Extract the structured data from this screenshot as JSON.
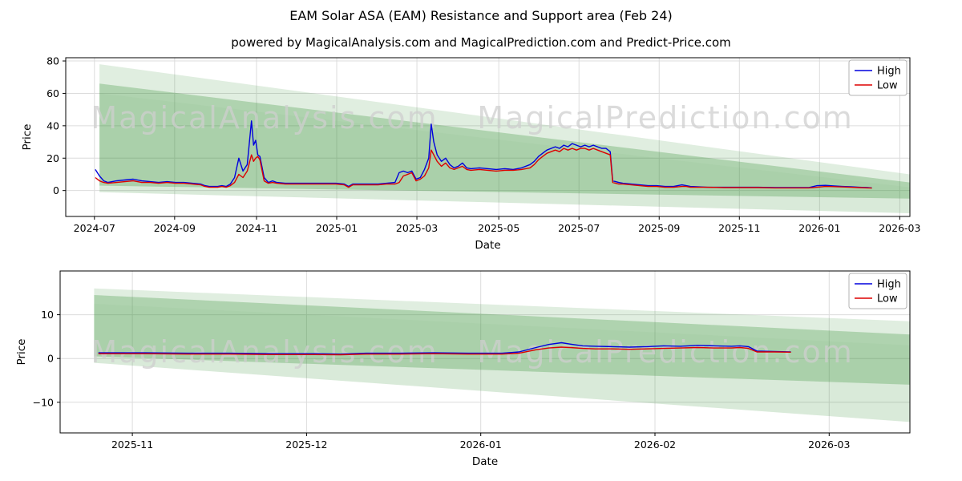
{
  "header": {
    "title": "EAM Solar ASA (EAM) Resistance and Support area (Feb 24)",
    "subtitle": "powered by MagicalAnalysis.com and MagicalPrediction.com and Predict-Price.com"
  },
  "watermarks": [
    "MagicalAnalysis.com",
    "MagicalPrediction.com"
  ],
  "colors": {
    "high": "#0000dd",
    "low": "#dd0000",
    "band": "#2e8b2e",
    "grid": "#dcdcdc",
    "watermark": "#cfcfcf",
    "axis": "#000000"
  },
  "legend": {
    "high_label": "High",
    "low_label": "Low"
  },
  "chart_data": [
    {
      "type": "line",
      "title": "Resistance and Support area - full history",
      "xlabel": "Date",
      "ylabel": "Price",
      "ylim": [
        -16,
        82
      ],
      "x_ticks": [
        {
          "f": 0.034,
          "label": "2024-07"
        },
        {
          "f": 0.129,
          "label": "2024-09"
        },
        {
          "f": 0.226,
          "label": "2024-11"
        },
        {
          "f": 0.321,
          "label": "2025-01"
        },
        {
          "f": 0.416,
          "label": "2025-03"
        },
        {
          "f": 0.513,
          "label": "2025-05"
        },
        {
          "f": 0.608,
          "label": "2025-07"
        },
        {
          "f": 0.703,
          "label": "2025-09"
        },
        {
          "f": 0.798,
          "label": "2025-11"
        },
        {
          "f": 0.893,
          "label": "2026-01"
        },
        {
          "f": 0.988,
          "label": "2026-03"
        }
      ],
      "y_ticks": [
        {
          "v": 0,
          "label": "0"
        },
        {
          "v": 20,
          "label": "20"
        },
        {
          "v": 40,
          "label": "40"
        },
        {
          "v": 60,
          "label": "60"
        },
        {
          "v": 80,
          "label": "80"
        }
      ],
      "series": [
        {
          "name": "High",
          "color_key": "high"
        },
        {
          "name": "Low",
          "color_key": "low"
        }
      ],
      "points": [
        [
          0.035,
          13,
          8
        ],
        [
          0.04,
          9,
          6
        ],
        [
          0.045,
          6,
          5
        ],
        [
          0.05,
          5,
          4.5
        ],
        [
          0.06,
          6,
          5
        ],
        [
          0.07,
          6.5,
          5.5
        ],
        [
          0.08,
          7,
          6
        ],
        [
          0.09,
          6,
          5
        ],
        [
          0.1,
          5.5,
          5
        ],
        [
          0.11,
          5,
          4.5
        ],
        [
          0.12,
          5.5,
          5
        ],
        [
          0.13,
          5,
          4.5
        ],
        [
          0.14,
          5,
          4.5
        ],
        [
          0.15,
          4.5,
          4
        ],
        [
          0.16,
          4,
          3.5
        ],
        [
          0.165,
          3,
          2.5
        ],
        [
          0.17,
          2.5,
          2
        ],
        [
          0.18,
          2.5,
          2
        ],
        [
          0.185,
          3,
          2.5
        ],
        [
          0.19,
          2.5,
          2
        ],
        [
          0.195,
          4,
          3
        ],
        [
          0.2,
          8,
          5
        ],
        [
          0.205,
          20,
          10
        ],
        [
          0.21,
          12,
          8
        ],
        [
          0.215,
          16,
          12
        ],
        [
          0.22,
          43,
          22
        ],
        [
          0.2225,
          28,
          18
        ],
        [
          0.225,
          31,
          20
        ],
        [
          0.2275,
          22,
          21
        ],
        [
          0.23,
          21,
          19
        ],
        [
          0.235,
          8,
          6
        ],
        [
          0.24,
          5,
          4.5
        ],
        [
          0.245,
          6,
          5
        ],
        [
          0.25,
          5,
          4.5
        ],
        [
          0.26,
          4.5,
          4
        ],
        [
          0.27,
          4.5,
          4
        ],
        [
          0.28,
          4.5,
          4
        ],
        [
          0.29,
          4.5,
          4
        ],
        [
          0.3,
          4.5,
          4
        ],
        [
          0.31,
          4.5,
          4
        ],
        [
          0.32,
          4.5,
          4
        ],
        [
          0.33,
          4,
          3.5
        ],
        [
          0.335,
          2.5,
          2
        ],
        [
          0.34,
          4,
          3.5
        ],
        [
          0.35,
          4,
          3.5
        ],
        [
          0.36,
          4,
          3.5
        ],
        [
          0.37,
          4,
          3.5
        ],
        [
          0.38,
          4.5,
          4
        ],
        [
          0.39,
          5,
          4
        ],
        [
          0.395,
          11,
          5
        ],
        [
          0.4,
          12,
          9
        ],
        [
          0.405,
          11,
          10
        ],
        [
          0.41,
          12,
          11
        ],
        [
          0.415,
          7,
          6
        ],
        [
          0.42,
          8,
          7
        ],
        [
          0.425,
          13,
          9
        ],
        [
          0.43,
          20,
          14
        ],
        [
          0.433,
          41,
          25
        ],
        [
          0.436,
          30,
          22
        ],
        [
          0.44,
          22,
          18
        ],
        [
          0.445,
          18,
          15
        ],
        [
          0.45,
          20,
          17
        ],
        [
          0.455,
          16,
          14
        ],
        [
          0.46,
          14,
          13
        ],
        [
          0.465,
          15,
          14
        ],
        [
          0.47,
          17,
          15
        ],
        [
          0.475,
          14,
          13
        ],
        [
          0.48,
          13.5,
          12.5
        ],
        [
          0.49,
          14,
          13
        ],
        [
          0.5,
          13.5,
          12.5
        ],
        [
          0.51,
          13,
          12
        ],
        [
          0.52,
          13.5,
          12.5
        ],
        [
          0.53,
          13,
          12.5
        ],
        [
          0.54,
          14,
          13
        ],
        [
          0.55,
          16,
          14
        ],
        [
          0.555,
          18,
          16
        ],
        [
          0.56,
          21,
          19
        ],
        [
          0.565,
          23,
          21
        ],
        [
          0.57,
          25,
          23
        ],
        [
          0.575,
          26,
          24
        ],
        [
          0.58,
          27,
          25
        ],
        [
          0.585,
          26,
          24
        ],
        [
          0.59,
          28,
          26
        ],
        [
          0.595,
          27,
          25
        ],
        [
          0.6,
          29,
          26
        ],
        [
          0.605,
          28,
          25
        ],
        [
          0.61,
          27,
          26
        ],
        [
          0.615,
          28,
          26
        ],
        [
          0.62,
          27,
          25
        ],
        [
          0.625,
          28,
          26
        ],
        [
          0.63,
          27,
          25
        ],
        [
          0.635,
          26,
          24
        ],
        [
          0.64,
          26,
          23
        ],
        [
          0.645,
          24,
          22
        ],
        [
          0.648,
          6,
          5
        ],
        [
          0.655,
          5,
          4
        ],
        [
          0.66,
          4.5,
          4
        ],
        [
          0.67,
          4,
          3.5
        ],
        [
          0.68,
          3.5,
          3
        ],
        [
          0.69,
          3,
          2.5
        ],
        [
          0.7,
          3,
          2.5
        ],
        [
          0.71,
          2.5,
          2
        ],
        [
          0.72,
          2.5,
          2
        ],
        [
          0.73,
          3.5,
          2.5
        ],
        [
          0.735,
          3,
          2.5
        ],
        [
          0.74,
          2.5,
          2
        ],
        [
          0.76,
          2,
          2
        ],
        [
          0.78,
          2,
          1.8
        ],
        [
          0.8,
          2,
          1.8
        ],
        [
          0.82,
          2,
          1.8
        ],
        [
          0.84,
          1.8,
          1.6
        ],
        [
          0.86,
          1.8,
          1.6
        ],
        [
          0.88,
          1.8,
          1.6
        ],
        [
          0.89,
          3,
          2
        ],
        [
          0.9,
          3.2,
          2.5
        ],
        [
          0.91,
          2.8,
          2.4
        ],
        [
          0.92,
          2.5,
          2.2
        ],
        [
          0.93,
          2.3,
          2
        ],
        [
          0.94,
          2,
          1.8
        ],
        [
          0.95,
          1.8,
          1.6
        ],
        [
          0.955,
          1.6,
          1.5
        ]
      ],
      "bands": [
        {
          "opacity": 0.15,
          "pts": [
            [
              0.04,
              78
            ],
            [
              1,
              10
            ],
            [
              1,
              2
            ],
            [
              0.04,
              60
            ]
          ]
        },
        {
          "opacity": 0.18,
          "pts": [
            [
              0.04,
              60
            ],
            [
              1,
              2
            ],
            [
              1,
              -14
            ],
            [
              0.04,
              -1
            ]
          ]
        },
        {
          "opacity": 0.27,
          "pts": [
            [
              0.04,
              66
            ],
            [
              1,
              5
            ],
            [
              1,
              -5
            ],
            [
              0.04,
              3
            ]
          ]
        }
      ]
    },
    {
      "type": "line",
      "title": "Resistance and Support area - recent zoom",
      "xlabel": "Date",
      "ylabel": "Price",
      "ylim": [
        -17,
        20
      ],
      "x_ticks": [
        {
          "f": 0.085,
          "label": "2025-11"
        },
        {
          "f": 0.29,
          "label": "2025-12"
        },
        {
          "f": 0.495,
          "label": "2026-01"
        },
        {
          "f": 0.7,
          "label": "2026-02"
        },
        {
          "f": 0.905,
          "label": "2026-03"
        }
      ],
      "y_ticks": [
        {
          "v": -10,
          "label": "−10"
        },
        {
          "v": 0,
          "label": "0"
        },
        {
          "v": 10,
          "label": "10"
        }
      ],
      "series": [
        {
          "name": "High",
          "color_key": "high"
        },
        {
          "name": "Low",
          "color_key": "low"
        }
      ],
      "points": [
        [
          0.045,
          1.3,
          1.1
        ],
        [
          0.1,
          1.3,
          1.1
        ],
        [
          0.15,
          1.2,
          1.0
        ],
        [
          0.2,
          1.2,
          1.0
        ],
        [
          0.25,
          1.1,
          0.9
        ],
        [
          0.3,
          1.1,
          0.9
        ],
        [
          0.33,
          1.0,
          0.85
        ],
        [
          0.36,
          1.2,
          1.0
        ],
        [
          0.4,
          1.2,
          1.0
        ],
        [
          0.44,
          1.3,
          1.1
        ],
        [
          0.48,
          1.2,
          1.0
        ],
        [
          0.52,
          1.2,
          1.0
        ],
        [
          0.54,
          1.5,
          1.2
        ],
        [
          0.56,
          2.5,
          2.0
        ],
        [
          0.575,
          3.2,
          2.4
        ],
        [
          0.59,
          3.6,
          2.6
        ],
        [
          0.6,
          3.3,
          2.5
        ],
        [
          0.615,
          2.9,
          2.3
        ],
        [
          0.63,
          2.8,
          2.2
        ],
        [
          0.65,
          2.7,
          2.2
        ],
        [
          0.67,
          2.6,
          2.1
        ],
        [
          0.69,
          2.7,
          2.2
        ],
        [
          0.71,
          2.9,
          2.3
        ],
        [
          0.73,
          2.8,
          2.4
        ],
        [
          0.75,
          3.0,
          2.5
        ],
        [
          0.77,
          2.9,
          2.4
        ],
        [
          0.79,
          2.8,
          2.4
        ],
        [
          0.8,
          2.9,
          2.5
        ],
        [
          0.81,
          2.7,
          2.3
        ],
        [
          0.82,
          1.7,
          1.5
        ],
        [
          0.84,
          1.6,
          1.5
        ],
        [
          0.86,
          1.5,
          1.45
        ]
      ],
      "bands": [
        {
          "opacity": 0.15,
          "pts": [
            [
              0.04,
              16
            ],
            [
              1,
              8.5
            ],
            [
              1,
              3
            ],
            [
              0.04,
              12.5
            ]
          ]
        },
        {
          "opacity": 0.18,
          "pts": [
            [
              0.04,
              12.5
            ],
            [
              1,
              3
            ],
            [
              1,
              -14.5
            ],
            [
              0.04,
              -1
            ]
          ]
        },
        {
          "opacity": 0.27,
          "pts": [
            [
              0.04,
              14.5
            ],
            [
              1,
              5.5
            ],
            [
              1,
              -6
            ],
            [
              0.04,
              0.5
            ]
          ]
        }
      ]
    }
  ]
}
